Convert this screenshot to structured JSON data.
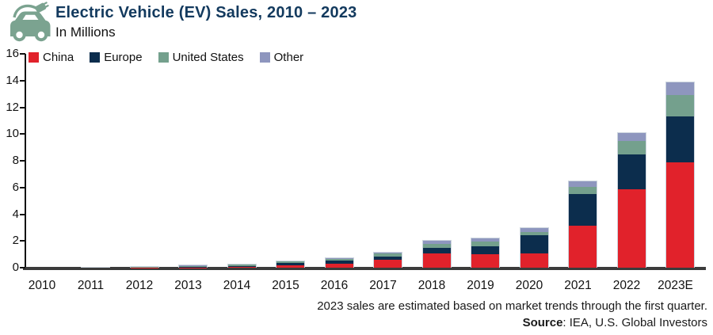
{
  "chart_data": {
    "type": "bar",
    "stacked": true,
    "title": "Electric Vehicle (EV) Sales, 2010 – 2023",
    "subtitle": "In Millions",
    "categories": [
      "2010",
      "2011",
      "2012",
      "2013",
      "2014",
      "2015",
      "2016",
      "2017",
      "2018",
      "2019",
      "2020",
      "2021",
      "2022",
      "2023E"
    ],
    "series": [
      {
        "name": "China",
        "color": "#E1222B",
        "values": [
          0,
          0.01,
          0.02,
          0.03,
          0.05,
          0.2,
          0.35,
          0.6,
          1.1,
          1.05,
          1.1,
          3.2,
          5.9,
          7.9
        ]
      },
      {
        "name": "Europe",
        "color": "#0C2D4D",
        "values": [
          0,
          0.01,
          0.03,
          0.05,
          0.1,
          0.2,
          0.22,
          0.3,
          0.4,
          0.6,
          1.35,
          2.35,
          2.65,
          3.45
        ]
      },
      {
        "name": "United States",
        "color": "#74A08D",
        "values": [
          0,
          0.02,
          0.05,
          0.1,
          0.12,
          0.1,
          0.16,
          0.2,
          0.36,
          0.33,
          0.3,
          0.55,
          1.0,
          1.6
        ]
      },
      {
        "name": "Other",
        "color": "#8E96BE",
        "values": [
          0,
          0.01,
          0.03,
          0.03,
          0.05,
          0.05,
          0.06,
          0.1,
          0.2,
          0.25,
          0.25,
          0.4,
          0.6,
          0.95
        ]
      }
    ],
    "ylim": [
      0,
      16
    ],
    "yticks": [
      0,
      2,
      4,
      6,
      8,
      10,
      12,
      14,
      16
    ],
    "xlabel": "",
    "ylabel": "In Millions",
    "legend_position": "top-left",
    "grid": false
  },
  "footer": {
    "note": "2023 sales are estimated based on market trends through the first quarter.",
    "source_bold": "Source",
    "source_rest": ": IEA, U.S. Global Investors"
  },
  "icon": {
    "name": "ev-car-icon",
    "color": "#7BA390"
  }
}
